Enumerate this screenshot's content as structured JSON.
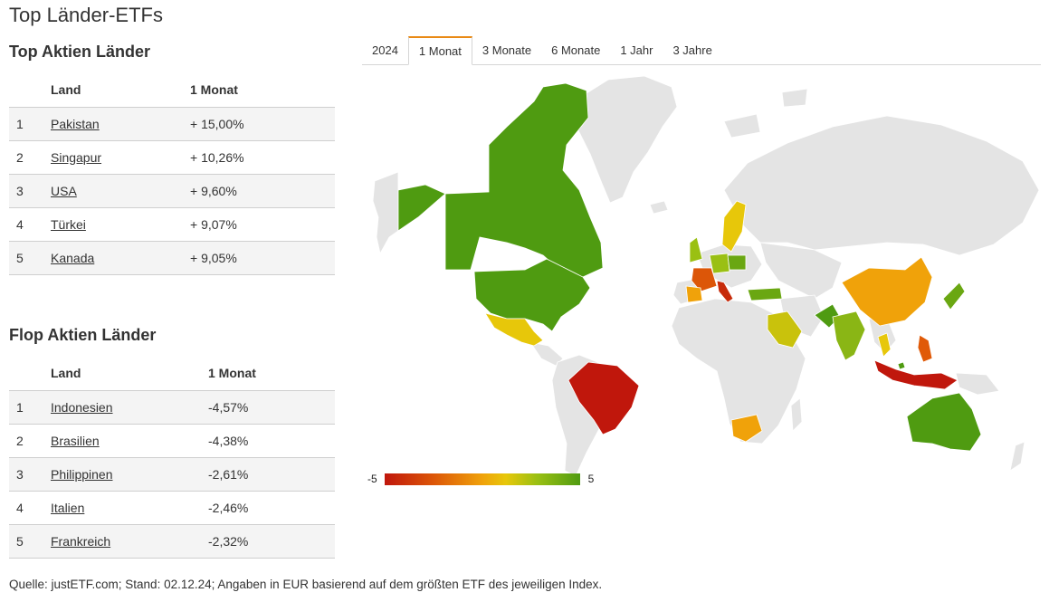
{
  "page": {
    "title": "Top Länder-ETFs"
  },
  "top": {
    "title": "Top Aktien Länder",
    "col_land": "Land",
    "col_period": "1 Monat",
    "rows": [
      {
        "rank": "1",
        "country": "Pakistan",
        "value": "+ 15,00%"
      },
      {
        "rank": "2",
        "country": "Singapur",
        "value": "+ 10,26%"
      },
      {
        "rank": "3",
        "country": "USA",
        "value": "+ 9,60%"
      },
      {
        "rank": "4",
        "country": "Türkei",
        "value": "+ 9,07%"
      },
      {
        "rank": "5",
        "country": "Kanada",
        "value": "+ 9,05%"
      }
    ]
  },
  "flop": {
    "title": "Flop Aktien Länder",
    "col_land": "Land",
    "col_period": "1 Monat",
    "rows": [
      {
        "rank": "1",
        "country": "Indonesien",
        "value": "-4,57%"
      },
      {
        "rank": "2",
        "country": "Brasilien",
        "value": "-4,38%"
      },
      {
        "rank": "3",
        "country": "Philippinen",
        "value": "-2,61%"
      },
      {
        "rank": "4",
        "country": "Italien",
        "value": "-2,46%"
      },
      {
        "rank": "5",
        "country": "Frankreich",
        "value": "-2,32%"
      }
    ]
  },
  "tabs": {
    "items": [
      "2024",
      "1 Monat",
      "3 Monate",
      "6 Monate",
      "1 Jahr",
      "3 Jahre"
    ],
    "active": "1 Monat"
  },
  "legend": {
    "min": "-5",
    "max": "5"
  },
  "colors": {
    "positive_text": "#4a9a0e",
    "negative_text": "#c0170c",
    "tab_accent": "#e98a15",
    "map_no_data": "#e4e4e4",
    "scale_low": "#c0170c",
    "scale_mid": "#f0a20a",
    "scale_high": "#4f9b11"
  },
  "footer": {
    "text": "Quelle: justETF.com; Stand: 02.12.24; Angaben in EUR basierend auf dem größten ETF des jeweiligen Index."
  }
}
